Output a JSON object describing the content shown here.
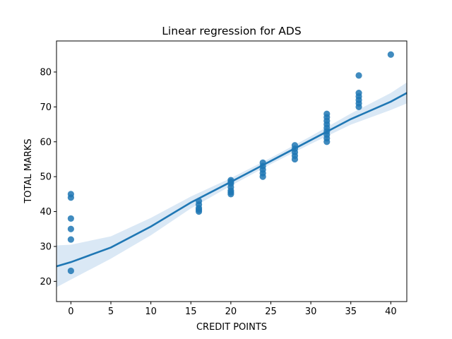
{
  "chart_data": {
    "type": "scatter",
    "title": "Linear regression for ADS",
    "xlabel": "CREDIT POINTS",
    "ylabel": "TOTAL MARKS",
    "xlim": [
      -1.8,
      42.0
    ],
    "ylim": [
      14.2,
      88.9
    ],
    "xticks": [
      0,
      5,
      10,
      15,
      20,
      25,
      30,
      35,
      40
    ],
    "yticks": [
      20,
      30,
      40,
      50,
      60,
      70,
      80
    ],
    "grid": false,
    "points": [
      {
        "x": 0,
        "y": 45
      },
      {
        "x": 0,
        "y": 44
      },
      {
        "x": 0,
        "y": 38
      },
      {
        "x": 0,
        "y": 35
      },
      {
        "x": 0,
        "y": 32
      },
      {
        "x": 0,
        "y": 23
      },
      {
        "x": 16,
        "y": 43
      },
      {
        "x": 16,
        "y": 42
      },
      {
        "x": 16,
        "y": 41
      },
      {
        "x": 16,
        "y": 40.5
      },
      {
        "x": 16,
        "y": 40
      },
      {
        "x": 20,
        "y": 49
      },
      {
        "x": 20,
        "y": 48.5
      },
      {
        "x": 20,
        "y": 48
      },
      {
        "x": 20,
        "y": 47
      },
      {
        "x": 20,
        "y": 46
      },
      {
        "x": 20,
        "y": 45.5
      },
      {
        "x": 20,
        "y": 45
      },
      {
        "x": 24,
        "y": 54
      },
      {
        "x": 24,
        "y": 53
      },
      {
        "x": 24,
        "y": 52
      },
      {
        "x": 24,
        "y": 51
      },
      {
        "x": 24,
        "y": 50
      },
      {
        "x": 28,
        "y": 59
      },
      {
        "x": 28,
        "y": 58
      },
      {
        "x": 28,
        "y": 57
      },
      {
        "x": 28,
        "y": 56
      },
      {
        "x": 28,
        "y": 55
      },
      {
        "x": 32,
        "y": 68
      },
      {
        "x": 32,
        "y": 67
      },
      {
        "x": 32,
        "y": 66
      },
      {
        "x": 32,
        "y": 65
      },
      {
        "x": 32,
        "y": 64
      },
      {
        "x": 32,
        "y": 63
      },
      {
        "x": 32,
        "y": 62
      },
      {
        "x": 32,
        "y": 61
      },
      {
        "x": 32,
        "y": 60
      },
      {
        "x": 36,
        "y": 79
      },
      {
        "x": 36,
        "y": 74
      },
      {
        "x": 36,
        "y": 73
      },
      {
        "x": 36,
        "y": 72
      },
      {
        "x": 36,
        "y": 71
      },
      {
        "x": 36,
        "y": 70
      },
      {
        "x": 40,
        "y": 85
      }
    ],
    "regression": {
      "x": [
        -1.8,
        0,
        5,
        10,
        15,
        20,
        25,
        30,
        35,
        40,
        42.0
      ],
      "y": [
        24.3,
        25.5,
        29.7,
        35.7,
        42.6,
        48.5,
        54.5,
        60.5,
        66.5,
        71.5,
        74.0
      ],
      "ci_lower": [
        18.3,
        20.5,
        26.5,
        33.2,
        40.9,
        47.4,
        53.6,
        59.4,
        64.9,
        69.1,
        71.0
      ],
      "ci_upper": [
        30.3,
        30.5,
        32.9,
        38.2,
        44.3,
        49.6,
        55.4,
        61.6,
        68.1,
        74.0,
        77.0
      ]
    },
    "colors": {
      "points": "#1f77b4",
      "line": "#1f77b4",
      "band": "#c6dbef"
    }
  }
}
